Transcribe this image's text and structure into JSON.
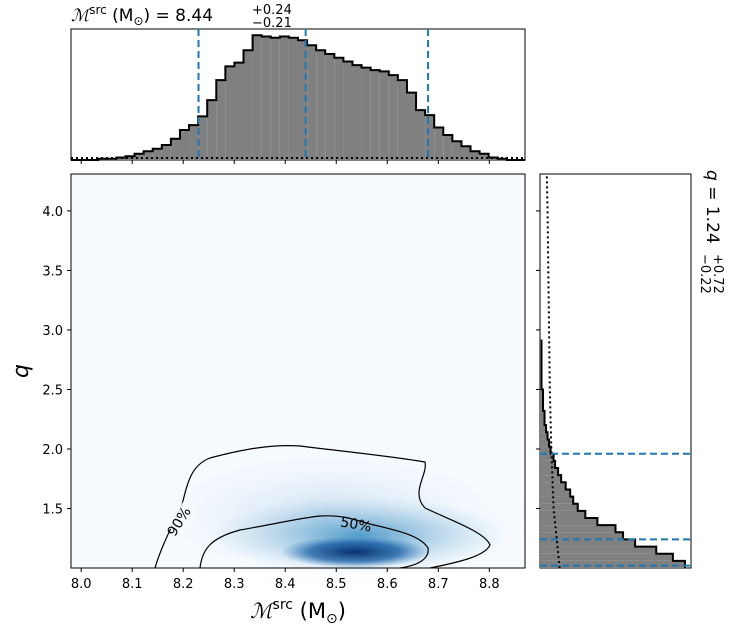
{
  "chart_data": [
    {
      "type": "histogram",
      "title": {
        "sym": "ℳ",
        "sup": "src",
        "unit_a": " (M",
        "sun": "⊙",
        "unit_b": ") = 8.44",
        "plus": "+0.24",
        "minus": "−0.21"
      },
      "bins": [
        7.98,
        7.9978,
        8.0156,
        8.0334,
        8.0512,
        8.069,
        8.0868,
        8.1046,
        8.1224,
        8.1402,
        8.158,
        8.1758,
        8.1936,
        8.2114,
        8.2292,
        8.247,
        8.2648,
        8.2826,
        8.3004,
        8.3182,
        8.336,
        8.3538,
        8.3716,
        8.3894,
        8.4072,
        8.425,
        8.4428,
        8.4606,
        8.4784,
        8.4962,
        8.514,
        8.5318,
        8.5496,
        8.5674,
        8.5852,
        8.603,
        8.6208,
        8.6386,
        8.6564,
        8.6742,
        8.692,
        8.7098,
        8.7276,
        8.7454,
        8.7632,
        8.781,
        8.7988,
        8.8166,
        8.8344,
        8.8522,
        8.87
      ],
      "values": [
        0,
        0,
        0,
        0.01,
        0.01,
        0.02,
        0.03,
        0.05,
        0.07,
        0.09,
        0.12,
        0.17,
        0.24,
        0.28,
        0.35,
        0.48,
        0.64,
        0.75,
        0.78,
        0.88,
        1.0,
        0.99,
        0.98,
        0.99,
        0.98,
        0.96,
        0.92,
        0.88,
        0.85,
        0.82,
        0.79,
        0.76,
        0.74,
        0.72,
        0.71,
        0.68,
        0.64,
        0.54,
        0.4,
        0.36,
        0.26,
        0.2,
        0.15,
        0.11,
        0.07,
        0.05,
        0.02,
        0.01,
        0,
        0
      ],
      "color": "#808080",
      "quantiles": [
        8.23,
        8.44,
        8.68
      ],
      "quantile_color": "#1f77b4",
      "prior": {
        "x": [
          7.98,
          8.87
        ],
        "values": [
          0.016,
          0.016
        ]
      },
      "xlim": [
        7.98,
        8.87
      ],
      "ylim": [
        0,
        1.05
      ],
      "xticks": [
        {
          "value": 8,
          "label": "8.0"
        },
        8.1,
        8.2,
        8.3,
        8.4,
        8.5,
        8.6,
        8.7,
        8.8
      ]
    },
    {
      "type": "density",
      "xlabel": {
        "sym": "ℳ",
        "sup": "src",
        "unit_a": " (M",
        "sun": "⊙",
        "unit_b": ")"
      },
      "ylabel": "q",
      "contour_labels": [
        "90%",
        "50%"
      ],
      "xlim": [
        7.98,
        8.87
      ],
      "ylim": [
        1.0,
        4.31
      ],
      "xticks": [
        {
          "value": 8,
          "label": "8.0"
        },
        8.1,
        8.2,
        8.3,
        8.4,
        8.5,
        8.6,
        8.7,
        8.8
      ],
      "yticks": [
        1.5,
        {
          "value": 2,
          "label": "2.0"
        },
        2.5,
        {
          "value": 3,
          "label": "3.0"
        },
        3.5,
        {
          "value": 4,
          "label": "4.0"
        }
      ]
    },
    {
      "type": "histogram",
      "orientation": "horizontal",
      "title": {
        "sym": "q",
        "eq": " = 1.24",
        "plus": "+0.72",
        "minus": "−0.22"
      },
      "bins": [
        1.0,
        1.06,
        1.12,
        1.18,
        1.24,
        1.3,
        1.36,
        1.42,
        1.48,
        1.54,
        1.6,
        1.66,
        1.72,
        1.78,
        1.84,
        1.9,
        1.96,
        2.02,
        2.08,
        2.14,
        2.2,
        2.26,
        2.32,
        2.38,
        2.44,
        2.5,
        2.56,
        2.62,
        2.68,
        2.74,
        2.8,
        2.86,
        2.92
      ],
      "values": [
        0.96,
        0.88,
        0.77,
        0.63,
        0.55,
        0.5,
        0.38,
        0.3,
        0.25,
        0.22,
        0.2,
        0.17,
        0.14,
        0.12,
        0.1,
        0.09,
        0.07,
        0.06,
        0.05,
        0.04,
        0.03,
        0.03,
        0.02,
        0.02,
        0.02,
        0.01,
        0.01,
        0.01,
        0.01,
        0.01,
        0.01,
        0.01
      ],
      "color": "#808080",
      "quantiles": [
        1.02,
        1.24,
        1.96
      ],
      "quantile_color": "#1f77b4",
      "prior": {
        "y": [
          1.0,
          1.5,
          2.0,
          2.5,
          3.0,
          3.5,
          4.0,
          4.31
        ],
        "values": [
          0.13,
          0.09,
          0.075,
          0.065,
          0.06,
          0.055,
          0.05,
          0.045
        ]
      },
      "ylim": [
        1.0,
        4.31
      ],
      "xlim": [
        0,
        1
      ],
      "yticks": [
        1.5,
        {
          "value": 2,
          "label": "2.0"
        },
        2.5,
        {
          "value": 3,
          "label": "3.0"
        },
        3.5,
        {
          "value": 4,
          "label": "4.0"
        }
      ]
    }
  ]
}
